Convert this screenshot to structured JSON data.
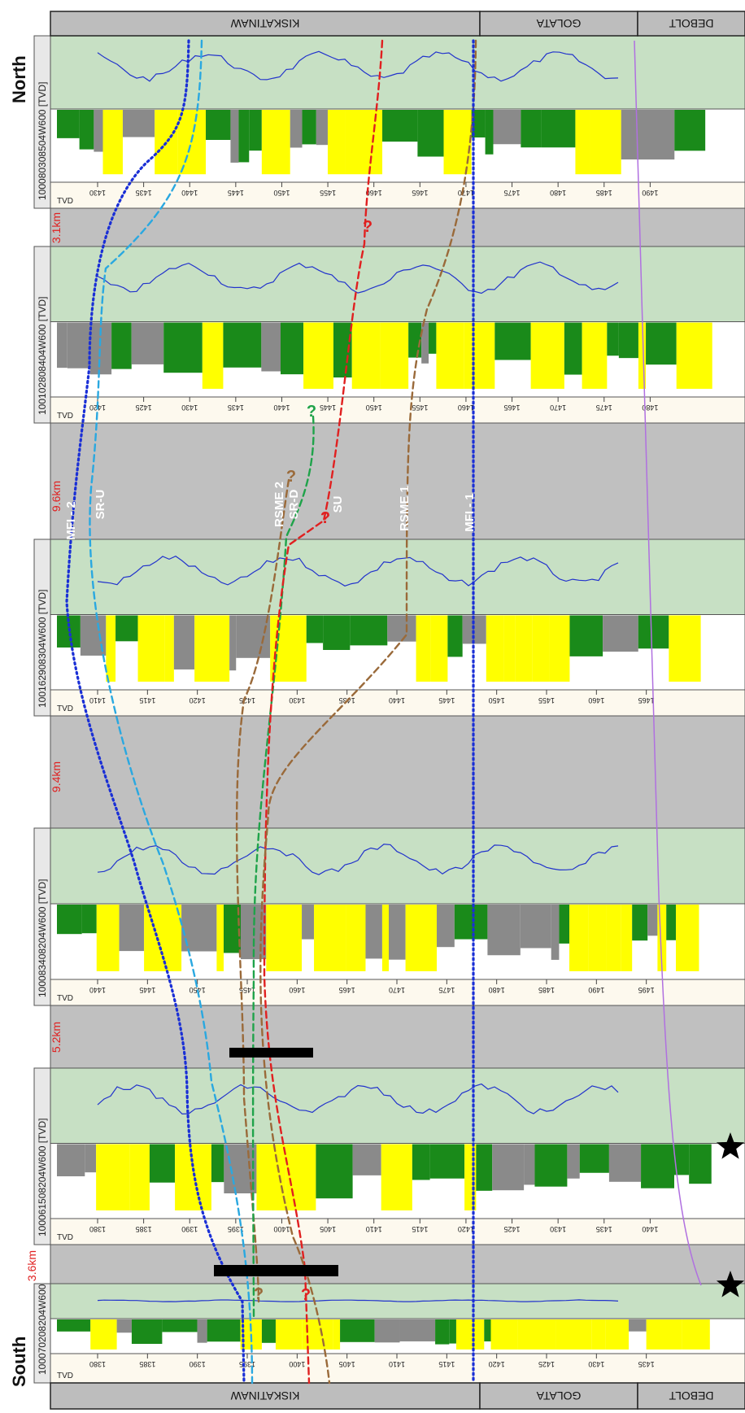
{
  "orientation": {
    "north_label": "North",
    "south_label": "South"
  },
  "formation_header_top": [
    {
      "name": "KISKATINAW"
    },
    {
      "name": "GOLATA"
    },
    {
      "name": "DEBOLT"
    }
  ],
  "formation_header_bottom": [
    {
      "name": "KISKATINAW"
    },
    {
      "name": "GOLATA"
    },
    {
      "name": "DEBOLT"
    }
  ],
  "wells": [
    {
      "uwi": "100080308504W600",
      "tvd_label": "TVD",
      "track_header_suffix": "[TVD]",
      "depth_ticks": [
        "1430",
        "1435",
        "1440",
        "1445",
        "1450",
        "1455",
        "1460",
        "1465",
        "1470",
        "1475",
        "1480",
        "1485",
        "1490"
      ]
    },
    {
      "uwi": "100102808404W600",
      "tvd_label": "TVD",
      "track_header_suffix": "[TVD]",
      "depth_ticks": [
        "1420",
        "1425",
        "1430",
        "1435",
        "1440",
        "1445",
        "1450",
        "1455",
        "1460",
        "1465",
        "1470",
        "1475",
        "1480"
      ]
    },
    {
      "uwi": "100162908304W600",
      "tvd_label": "TVD",
      "track_header_suffix": "[TVD]",
      "depth_ticks": [
        "1410",
        "1415",
        "1420",
        "1425",
        "1430",
        "1435",
        "1440",
        "1445",
        "1450",
        "1455",
        "1460",
        "1465"
      ]
    },
    {
      "uwi": "100083408204W600",
      "tvd_label": "TVD",
      "track_header_suffix": "[TVD]",
      "depth_ticks": [
        "1440",
        "1445",
        "1450",
        "1455",
        "1460",
        "1465",
        "1470",
        "1475",
        "1480",
        "1485",
        "1490",
        "1495"
      ]
    },
    {
      "uwi": "100061508204W600",
      "tvd_label": "TVD",
      "track_header_suffix": "[TVD]",
      "depth_ticks": [
        "1380",
        "1385",
        "1390",
        "1395",
        "1400",
        "1405",
        "1410",
        "1415",
        "1420",
        "1425",
        "1430",
        "1435",
        "1440"
      ]
    },
    {
      "uwi": "100070208204W600",
      "tvd_label": "TVD",
      "track_header_suffix": "",
      "depth_ticks": [
        "1380",
        "1385",
        "1390",
        "1395",
        "1400",
        "1405",
        "1410",
        "1415",
        "1420",
        "1425",
        "1430",
        "1435"
      ]
    }
  ],
  "spacings": [
    "3.1km",
    "9.6km",
    "9.4km",
    "5.2km",
    "3.6km"
  ],
  "correlation_lines": [
    {
      "id": "mfi2",
      "label": "MFI - 2",
      "color": "#1a2fd6",
      "style": "dotted"
    },
    {
      "id": "sru",
      "label": "SR-U",
      "color": "#2aa8e0",
      "style": "dashed"
    },
    {
      "id": "rsme2",
      "label": "RSME 2",
      "color": "#9a6a3a",
      "style": "dashed"
    },
    {
      "id": "srd",
      "label": "SR-D",
      "color": "#1fa34a",
      "style": "dashed"
    },
    {
      "id": "su",
      "label": "SU",
      "color": "#e02020",
      "style": "dashed"
    },
    {
      "id": "rsme1",
      "label": "RSME 1",
      "color": "#9a6a3a",
      "style": "dashed"
    },
    {
      "id": "mfi1",
      "label": "MFI - 1",
      "color": "#1a2fd6",
      "style": "dotted"
    }
  ],
  "query_mark": "?",
  "colors": {
    "gray_band": "#c0c0c0",
    "resistivity_track": "#c7e0c4",
    "sand_fill": "#ffff00",
    "shale_fill": "#1a8a1a",
    "carbonate_fill": "#8a8a8a",
    "curve_blue": "#2233cc",
    "debolt_line": "#b070e0"
  }
}
